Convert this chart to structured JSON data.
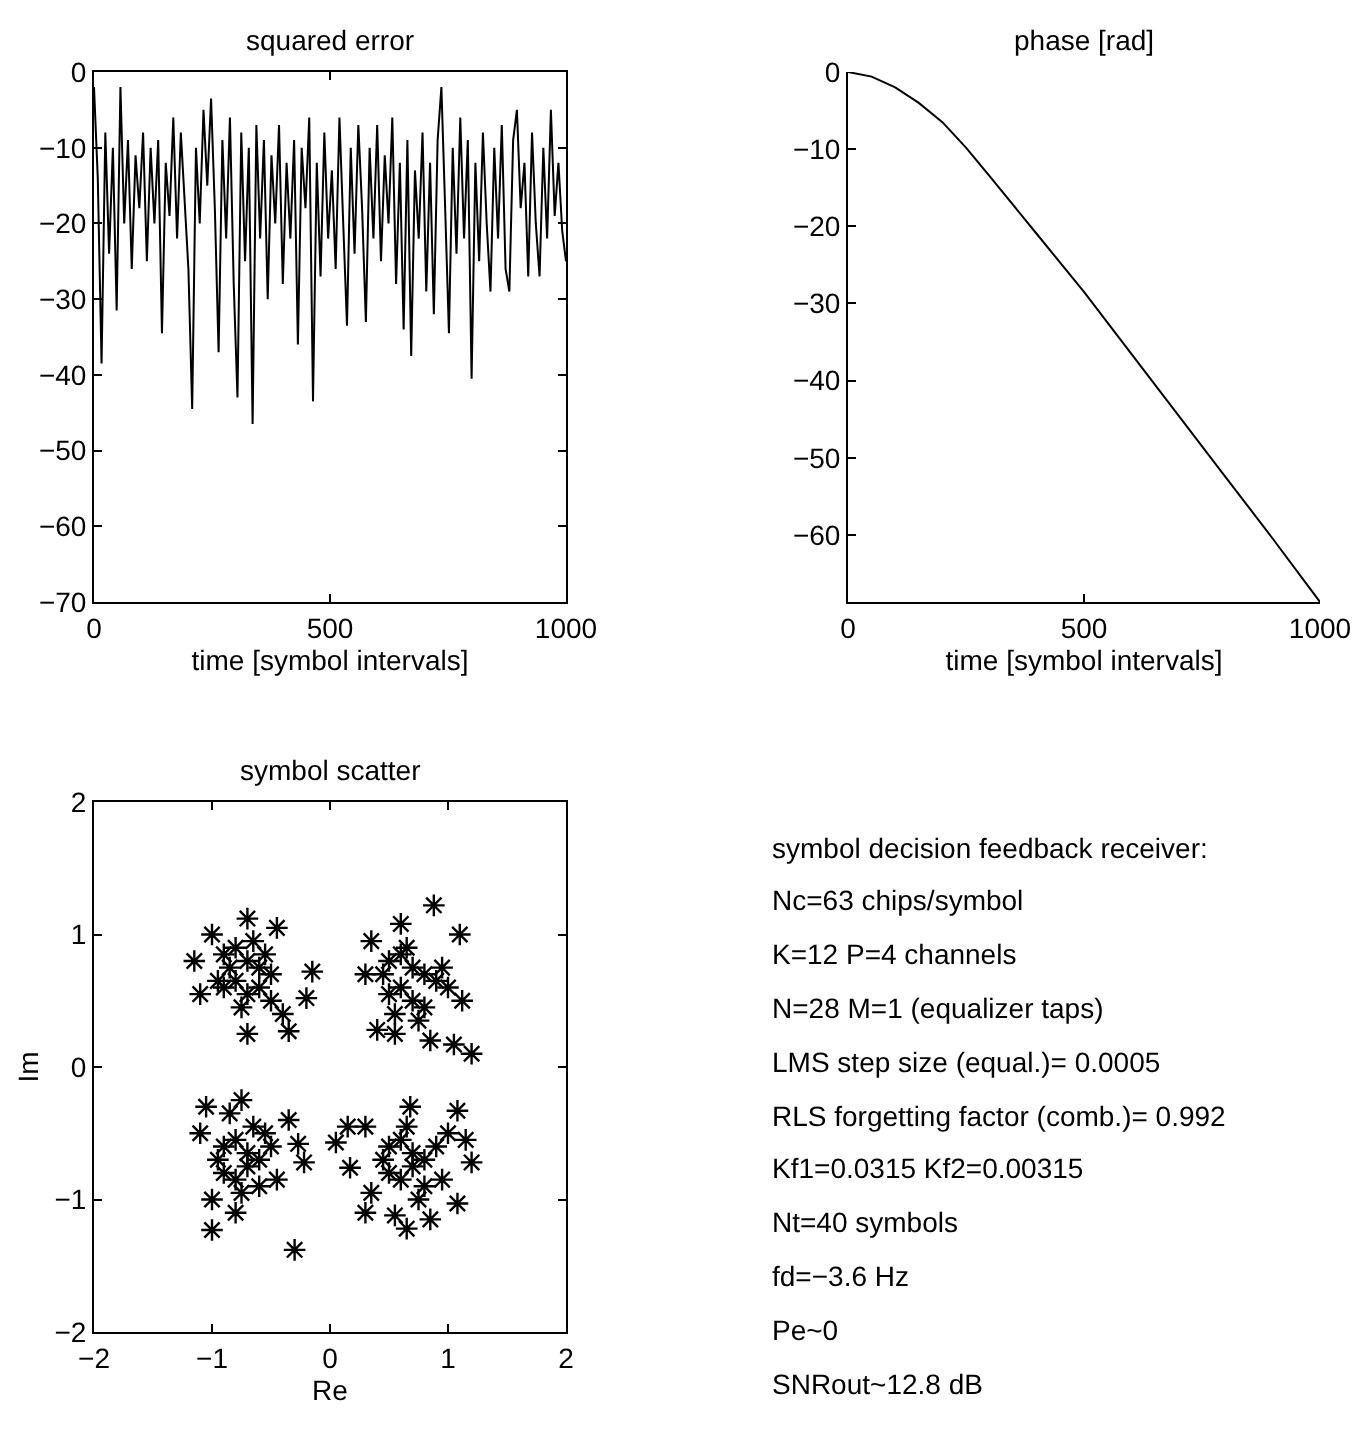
{
  "chart_data": [
    {
      "type": "line",
      "title": "squared error",
      "xlabel": "time [symbol intervals]",
      "color": "#000000",
      "xlim": [
        0,
        1000
      ],
      "xticks": [
        0,
        500,
        1000
      ],
      "ylim": [
        -70,
        0
      ],
      "yticks": [
        -70,
        -60,
        -50,
        -40,
        -30,
        -20,
        -10,
        0
      ],
      "x": [
        0,
        8,
        16,
        24,
        32,
        40,
        48,
        56,
        64,
        72,
        80,
        88,
        96,
        104,
        112,
        120,
        128,
        136,
        144,
        152,
        160,
        168,
        176,
        184,
        192,
        200,
        208,
        216,
        224,
        232,
        240,
        248,
        256,
        264,
        272,
        280,
        288,
        296,
        304,
        312,
        320,
        328,
        336,
        344,
        352,
        360,
        368,
        376,
        384,
        392,
        400,
        408,
        416,
        424,
        432,
        440,
        448,
        456,
        464,
        472,
        480,
        488,
        496,
        504,
        512,
        520,
        528,
        536,
        544,
        552,
        560,
        568,
        576,
        584,
        592,
        600,
        608,
        616,
        624,
        632,
        640,
        648,
        656,
        664,
        672,
        680,
        688,
        696,
        704,
        712,
        720,
        728,
        736,
        744,
        752,
        760,
        768,
        776,
        784,
        792,
        800,
        808,
        816,
        824,
        832,
        840,
        848,
        856,
        864,
        872,
        880,
        888,
        896,
        904,
        912,
        920,
        928,
        936,
        944,
        952,
        960,
        968,
        976,
        984,
        992,
        1000
      ],
      "values": [
        -2,
        -14,
        -38.5,
        -8,
        -24,
        -10,
        -31.5,
        -2,
        -20,
        -9,
        -26,
        -11,
        -18,
        -8,
        -25,
        -10,
        -20,
        -9,
        -34.5,
        -12,
        -19,
        -6,
        -22,
        -8,
        -17,
        -26,
        -44.5,
        -10,
        -20,
        -5,
        -15,
        -3.5,
        -18,
        -37,
        -9,
        -22,
        -6,
        -28,
        -43,
        -8,
        -25,
        -10,
        -46.5,
        -7,
        -22,
        -9,
        -30,
        -11,
        -20,
        -7,
        -28,
        -12,
        -22,
        -9,
        -36,
        -10,
        -18,
        -6,
        -43.5,
        -12,
        -27,
        -8,
        -22,
        -13,
        -26,
        -6,
        -20,
        -33.5,
        -10,
        -24,
        -7,
        -18,
        -33,
        -10,
        -22,
        -7,
        -25,
        -11,
        -20,
        -6,
        -28,
        -12,
        -34,
        -9,
        -37.5,
        -13,
        -22,
        -8,
        -29,
        -12,
        -32,
        -9,
        -2,
        -18,
        -34.5,
        -10,
        -24,
        -6,
        -22,
        -9,
        -40.5,
        -12,
        -25,
        -8,
        -20,
        -29,
        -10,
        -22,
        -7,
        -26,
        -29,
        -9,
        -5,
        -18,
        -12,
        -27,
        -8,
        -20,
        -27,
        -10,
        -22,
        -5,
        -19,
        -12,
        -21,
        -25
      ]
    },
    {
      "type": "line",
      "title": "phase [rad]",
      "xlabel": "time [symbol intervals]",
      "color": "#000000",
      "xlim": [
        0,
        1000
      ],
      "xticks": [
        0,
        500,
        1000
      ],
      "ylim": [
        -68.7,
        0
      ],
      "yticks": [
        -60,
        -50,
        -40,
        -30,
        -20,
        -10,
        0
      ],
      "x": [
        0,
        50,
        100,
        150,
        200,
        250,
        300,
        400,
        500,
        600,
        700,
        800,
        900,
        1000
      ],
      "values": [
        0,
        -0.6,
        -2,
        -4,
        -6.5,
        -9.8,
        -13.5,
        -21,
        -28.5,
        -36.5,
        -44.5,
        -52.5,
        -60.5,
        -68.7
      ]
    },
    {
      "type": "scatter",
      "title": "symbol scatter",
      "xlabel": "Re",
      "ylabel": "Im",
      "color": "#000000",
      "marker": "cross",
      "xlim": [
        -2,
        2
      ],
      "xticks": [
        -2,
        -1,
        0,
        1,
        2
      ],
      "ylim": [
        -2,
        2
      ],
      "yticks": [
        -2,
        -1,
        0,
        1,
        2
      ],
      "x": [
        -1.15,
        -1.1,
        -1.0,
        -0.7,
        -0.35,
        -0.2,
        -0.15,
        -0.45,
        -0.7,
        -0.9,
        -0.8,
        -0.7,
        -0.6,
        -0.5,
        -0.9,
        -0.8,
        -0.7,
        -0.6,
        -0.5,
        -0.85,
        -0.65,
        -0.55,
        -0.75,
        -0.95,
        -0.4,
        0.88,
        1.1,
        1.2,
        1.05,
        0.85,
        0.4,
        0.55,
        0.3,
        1.12,
        0.6,
        0.35,
        0.5,
        0.6,
        0.7,
        0.8,
        0.9,
        0.5,
        0.6,
        0.7,
        0.8,
        0.95,
        0.65,
        0.75,
        0.45,
        1.0,
        0.55,
        -1.0,
        -1.0,
        -0.8,
        -0.3,
        -0.35,
        -0.27,
        -0.22,
        -1.05,
        -0.75,
        -1.1,
        -0.9,
        -0.8,
        -0.7,
        -0.6,
        -0.5,
        -0.9,
        -0.8,
        -0.7,
        -0.6,
        -0.45,
        -0.95,
        -0.65,
        -0.55,
        -0.75,
        -0.85,
        0.05,
        0.15,
        0.17,
        0.3,
        0.3,
        0.35,
        1.08,
        1.15,
        1.2,
        1.08,
        0.85,
        0.65,
        0.68,
        0.55,
        0.5,
        0.6,
        0.7,
        0.8,
        0.9,
        0.5,
        0.6,
        0.7,
        0.8,
        0.95,
        0.65,
        0.75,
        0.45,
        1.0
      ],
      "values": [
        0.8,
        0.55,
        1.0,
        0.25,
        0.27,
        0.52,
        0.72,
        1.05,
        1.12,
        0.85,
        0.9,
        0.8,
        0.75,
        0.7,
        0.6,
        0.65,
        0.55,
        0.6,
        0.5,
        0.75,
        0.95,
        0.85,
        0.45,
        0.65,
        0.4,
        1.22,
        1.0,
        0.1,
        0.17,
        0.2,
        0.28,
        0.25,
        0.7,
        0.5,
        1.08,
        0.95,
        0.8,
        0.85,
        0.75,
        0.7,
        0.65,
        0.55,
        0.6,
        0.5,
        0.45,
        0.75,
        0.9,
        0.35,
        0.7,
        0.6,
        0.4,
        -1.23,
        -1.0,
        -1.1,
        -1.38,
        -0.4,
        -0.58,
        -0.72,
        -0.3,
        -0.25,
        -0.5,
        -0.6,
        -0.55,
        -0.65,
        -0.7,
        -0.6,
        -0.8,
        -0.85,
        -0.75,
        -0.9,
        -0.85,
        -0.7,
        -0.45,
        -0.5,
        -0.95,
        -0.35,
        -0.57,
        -0.45,
        -0.76,
        -0.45,
        -1.1,
        -0.95,
        -0.33,
        -0.55,
        -0.72,
        -1.03,
        -1.15,
        -1.22,
        -0.3,
        -1.12,
        -0.6,
        -0.55,
        -0.65,
        -0.7,
        -0.6,
        -0.8,
        -0.85,
        -0.75,
        -0.9,
        -0.85,
        -0.45,
        -1.0,
        -0.7,
        -0.5
      ]
    },
    {
      "type": "other",
      "title": "symbol decision feedback receiver:",
      "annotations": [
        "Nc=63 chips/symbol",
        "K=12 P=4 channels",
        "N=28 M=1 (equalizer taps)",
        "LMS step size (equal.)= 0.0005",
        "RLS forgetting factor (comb.)= 0.992",
        "Kf1=0.0315 Kf2=0.00315",
        "Nt=40 symbols",
        "fd=−3.6 Hz",
        "Pe~0",
        "SNRout~12.8 dB"
      ]
    }
  ]
}
